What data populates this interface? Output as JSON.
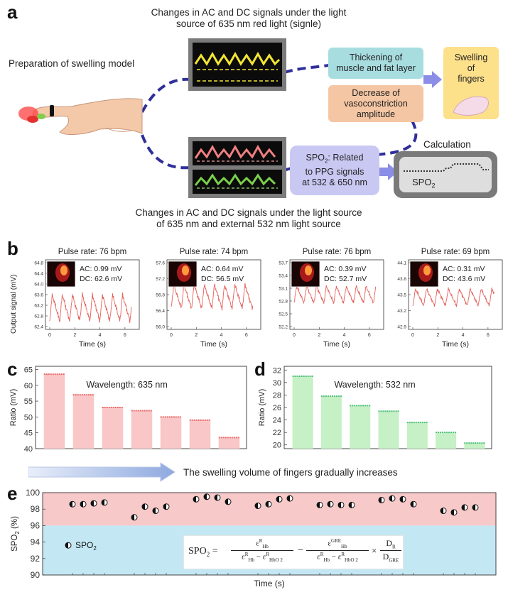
{
  "panel_a": {
    "letter": "a",
    "top_caption": [
      "Changes in AC and DC signals under the light",
      "source of 635 nm red light (signle)"
    ],
    "left_caption": "Preparation of swelling model",
    "box_thickening": [
      "Thickening of",
      "muscle and fat layer"
    ],
    "box_decrease": [
      "Decrease of",
      "vasoconstriction",
      "amplitude"
    ],
    "box_swelling": [
      "Swelling",
      "of",
      "fingers"
    ],
    "calc_label": "Calculation",
    "spo2_box": {
      "pre": "SPO",
      "sub": "2",
      "post": ": Related",
      "line2": "to PPG signals",
      "line3": "at 532 & 650 nm"
    },
    "calc_box": {
      "pre": "SPO",
      "sub": "2"
    },
    "bottom_caption": [
      "Changes in AC and DC signals under the light source",
      "of 635 nm and external 532 nm light source"
    ],
    "colors": {
      "teal_box": "#a8dde0",
      "orange_box": "#f4c6a3",
      "yellow_box": "#fde08a",
      "lavender_box": "#c9c8f2",
      "arrow": "#8b8de6",
      "dash": "#2f2f9a"
    }
  },
  "panel_b": {
    "letter": "b",
    "ylabel": "Output signal (mV)",
    "xlabel": "Time (s)",
    "plots": [
      {
        "pulse": "Pulse rate: 76 bpm",
        "ac": "AC: 0.99 mV",
        "dc": "DC: 62.6 mV",
        "yticks": [
          "64.8",
          "64.4",
          "64.0",
          "63.6",
          "63.2",
          "62.8",
          "62.4"
        ],
        "ymin": 62.4,
        "ymax": 64.8,
        "xticks": [
          "0",
          "2",
          "4",
          "6"
        ],
        "base": 63.1,
        "amp": 0.5,
        "period": 0.8
      },
      {
        "pulse": "Pulse rate: 74 bpm",
        "ac": "AC: 0.64 mV",
        "dc": "DC: 56.5 mV",
        "yticks": [
          "57.6",
          "57.2",
          "56.8",
          "56.4",
          "56.0"
        ],
        "ymin": 56.0,
        "ymax": 57.6,
        "xticks": [
          "0",
          "2",
          "4",
          "6"
        ],
        "base": 56.75,
        "amp": 0.3,
        "period": 0.81
      },
      {
        "pulse": "Pulse rate: 76 bpm",
        "ac": "AC: 0.39 mV",
        "dc": "DC: 52.7 mV",
        "yticks": [
          "53.7",
          "53.4",
          "53.1",
          "52.8",
          "52.5",
          "52.2"
        ],
        "ymin": 52.2,
        "ymax": 53.7,
        "xticks": [
          "0",
          "2",
          "4",
          "6"
        ],
        "base": 52.95,
        "amp": 0.2,
        "period": 0.79
      },
      {
        "pulse": "Pulse rate: 69 bpm",
        "ac": "AC: 0.31 mV",
        "dc": "DC: 43.6 mV",
        "yticks": [
          "44.1",
          "43.8",
          "43.5",
          "43.2",
          "42.9"
        ],
        "ymin": 42.9,
        "ymax": 44.1,
        "xticks": [
          "0",
          "2",
          "4",
          "6"
        ],
        "base": 43.45,
        "amp": 0.16,
        "period": 0.87
      }
    ]
  },
  "arrow_caption": "The swelling volume of fingers gradually increases",
  "chart_data": [
    {
      "type": "bar",
      "panel": "c",
      "annotation": "Wavelength: 635 nm",
      "ylabel": "Ratio (mV)",
      "ylim": [
        40,
        66
      ],
      "yticks": [
        "40",
        "45",
        "50",
        "55",
        "60",
        "65"
      ],
      "values": [
        63.5,
        57.0,
        53.0,
        52.0,
        50.0,
        49.0,
        43.5
      ],
      "color": "#f9c7c7",
      "edge": "#e96a6a"
    },
    {
      "type": "bar",
      "panel": "d",
      "annotation": "Wavelength: 532 nm",
      "ylabel": "Ratio (mV)",
      "ylim": [
        19.4,
        32.6
      ],
      "yticks": [
        "20",
        "22",
        "24",
        "26",
        "28",
        "30",
        "32"
      ],
      "values": [
        31.0,
        27.8,
        26.3,
        25.4,
        23.6,
        22.0,
        20.3
      ],
      "color": "#c6f0c6",
      "edge": "#4fc07a"
    },
    {
      "type": "scatter",
      "panel": "e",
      "ylabel": "SPO2 (%)",
      "ylabel_pre": "SPO",
      "ylabel_sub": "2",
      "ylabel_post": " (%)",
      "xlabel": "Time (s)",
      "ylim": [
        90,
        100
      ],
      "yticks": [
        "90",
        "92",
        "94",
        "96",
        "98",
        "100"
      ],
      "legend": {
        "pre": "SPO",
        "sub": "2"
      },
      "bands": [
        {
          "from": 96,
          "to": 100,
          "color": "#f7c9c9"
        },
        {
          "from": 90,
          "to": 96,
          "color": "#c4e8f3"
        }
      ],
      "groups": [
        [
          98.6,
          98.6,
          98.7,
          98.8
        ],
        [
          97.0,
          98.3,
          97.8,
          98.3
        ],
        [
          99.2,
          99.5,
          99.4,
          98.9
        ],
        [
          98.4,
          98.6,
          99.2,
          99.3
        ],
        [
          98.5,
          98.6,
          98.5,
          98.5
        ],
        [
          99.1,
          99.3,
          99.2,
          98.6
        ],
        [
          97.8,
          97.6,
          98.2,
          98.2
        ]
      ]
    }
  ],
  "formula": {
    "lhs": "SPO",
    "lhs_sub": "2",
    "eq": "=",
    "eps": "ε",
    "hb": "Hb",
    "hbo2": "HbO 2",
    "sup_r": "R",
    "sup_gre": "GRE",
    "minus": "−",
    "times": "×",
    "d": "D",
    "d_r": "R",
    "d_gre": "GRE"
  },
  "letters": {
    "c": "c",
    "d": "d",
    "e": "e"
  }
}
